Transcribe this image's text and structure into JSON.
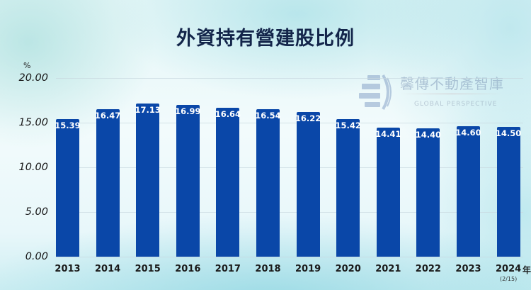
{
  "title": "外資持有營建股比例",
  "watermark": {
    "brand_cn": "馨傳不動產智庫",
    "brand_en": "GLOBAL PERSPECTIVE",
    "icon": "globe-icon"
  },
  "axis": {
    "y_unit": "%",
    "x_unit": "年",
    "y_ticks": [
      "20.00",
      "15.00",
      "10.00",
      "5.00",
      "0.00"
    ],
    "x_sub_label_last": "(2/15)"
  },
  "colors": {
    "bar": "#0a47a8",
    "title": "#13254a",
    "bar_label": "#ffffff"
  },
  "chart_data": {
    "type": "bar",
    "title": "外資持有營建股比例",
    "xlabel": "年",
    "ylabel": "%",
    "categories": [
      "2013",
      "2014",
      "2015",
      "2016",
      "2017",
      "2018",
      "2019",
      "2020",
      "2021",
      "2022",
      "2023",
      "2024"
    ],
    "category_notes": {
      "2024": "(2/15)"
    },
    "values": [
      15.39,
      16.47,
      17.13,
      16.99,
      16.64,
      16.54,
      16.22,
      15.42,
      14.41,
      14.4,
      14.6,
      14.5
    ],
    "value_labels": [
      "15.39",
      "16.47",
      "17.13",
      "16.99",
      "16.64",
      "16.54",
      "16.22",
      "15.42",
      "14.41",
      "14.40",
      "14.60",
      "14.50"
    ],
    "ylim": [
      0,
      20
    ],
    "y_tick_step": 5,
    "grid": true,
    "legend": null,
    "data_labels": "inside-top"
  }
}
